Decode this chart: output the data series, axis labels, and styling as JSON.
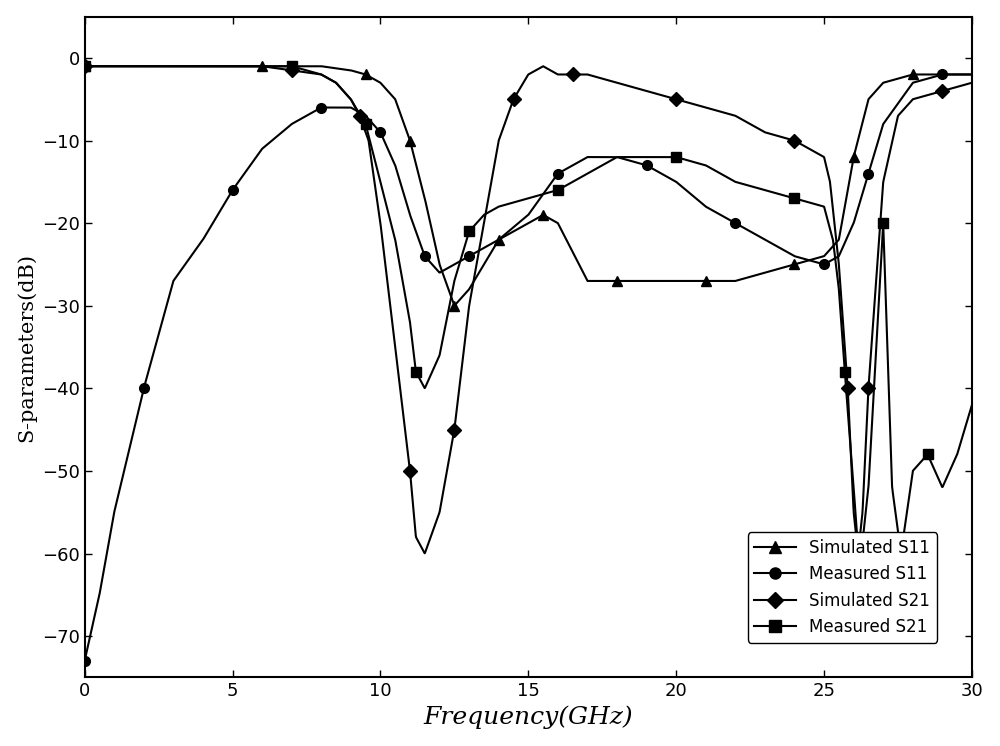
{
  "title": "",
  "xlabel": "Frequency(GHz)",
  "ylabel": "S-parameters(dB)",
  "xlim": [
    0,
    30
  ],
  "ylim": [
    -75,
    5
  ],
  "yticks": [
    0,
    -10,
    -20,
    -30,
    -40,
    -50,
    -60,
    -70
  ],
  "xticks": [
    0,
    5,
    10,
    15,
    20,
    25,
    30
  ],
  "background_color": "#ffffff",
  "legend_labels": [
    "Simulated S11",
    "Measured S11",
    "Simulated S21",
    "Measured S21"
  ],
  "sim_s11_x": [
    0,
    2,
    4,
    6,
    8,
    9,
    9.5,
    10,
    10.5,
    11,
    11.5,
    12,
    12.5,
    13,
    13.5,
    14,
    14.5,
    15,
    15.5,
    16,
    17,
    18,
    19,
    20,
    21,
    22,
    23,
    24,
    25,
    25.5,
    26,
    26.5,
    27,
    28,
    29,
    30
  ],
  "sim_s11_y": [
    -1,
    -1,
    -1,
    -1,
    -1,
    -1.5,
    -2,
    -3,
    -5,
    -10,
    -17,
    -25,
    -30,
    -28,
    -25,
    -22,
    -21,
    -20,
    -19,
    -20,
    -27,
    -27,
    -27,
    -27,
    -27,
    -27,
    -26,
    -25,
    -24,
    -22,
    -12,
    -5,
    -3,
    -2,
    -2,
    -2
  ],
  "meas_s11_x": [
    0,
    0.5,
    1,
    2,
    3,
    4,
    5,
    6,
    7,
    8,
    9,
    9.5,
    10,
    10.5,
    11,
    11.5,
    12,
    12.5,
    13,
    14,
    15,
    16,
    17,
    18,
    19,
    20,
    21,
    22,
    23,
    24,
    25,
    25.5,
    26,
    26.5,
    27,
    28,
    29,
    30
  ],
  "meas_s11_y": [
    -73,
    -65,
    -55,
    -40,
    -27,
    -22,
    -16,
    -11,
    -8,
    -6,
    -6,
    -7,
    -9,
    -13,
    -19,
    -24,
    -26,
    -25,
    -24,
    -22,
    -19,
    -14,
    -12,
    -12,
    -13,
    -15,
    -18,
    -20,
    -22,
    -24,
    -25,
    -24,
    -20,
    -14,
    -8,
    -3,
    -2,
    -2
  ],
  "sim_s21_x": [
    0,
    2,
    4,
    6,
    7,
    8,
    8.5,
    9,
    9.3,
    9.6,
    10,
    10.5,
    11,
    11.2,
    11.5,
    12,
    12.5,
    13,
    13.5,
    14,
    14.5,
    15,
    15.5,
    16,
    16.5,
    17,
    18,
    19,
    20,
    21,
    22,
    23,
    24,
    25,
    25.2,
    25.5,
    25.8,
    26.0,
    26.15,
    26.3,
    26.5,
    27,
    27.5,
    28,
    29,
    30
  ],
  "sim_s21_y": [
    -1,
    -1,
    -1,
    -1,
    -1.5,
    -2,
    -3,
    -5,
    -7,
    -10,
    -20,
    -35,
    -50,
    -58,
    -60,
    -55,
    -45,
    -30,
    -20,
    -10,
    -5,
    -2,
    -1,
    -2,
    -2,
    -2,
    -3,
    -4,
    -5,
    -6,
    -7,
    -9,
    -10,
    -12,
    -15,
    -25,
    -40,
    -55,
    -60,
    -55,
    -40,
    -15,
    -7,
    -5,
    -4,
    -3
  ],
  "meas_s21_x": [
    0,
    2,
    4,
    6,
    7,
    8,
    8.5,
    9,
    9.5,
    10,
    10.5,
    11,
    11.2,
    11.5,
    12,
    12.5,
    13,
    13.5,
    14,
    15,
    16,
    17,
    18,
    19,
    20,
    21,
    22,
    23,
    24,
    25,
    25.3,
    25.5,
    25.7,
    26.0,
    26.2,
    26.5,
    27,
    27.3,
    27.6,
    28,
    28.5,
    29,
    29.5,
    30
  ],
  "meas_s21_y": [
    -1,
    -1,
    -1,
    -1,
    -1,
    -2,
    -3,
    -5,
    -8,
    -15,
    -22,
    -32,
    -38,
    -40,
    -36,
    -27,
    -21,
    -19,
    -18,
    -17,
    -16,
    -14,
    -12,
    -12,
    -12,
    -13,
    -15,
    -16,
    -17,
    -18,
    -22,
    -28,
    -38,
    -52,
    -62,
    -52,
    -20,
    -52,
    -60,
    -50,
    -48,
    -52,
    -48,
    -42
  ]
}
